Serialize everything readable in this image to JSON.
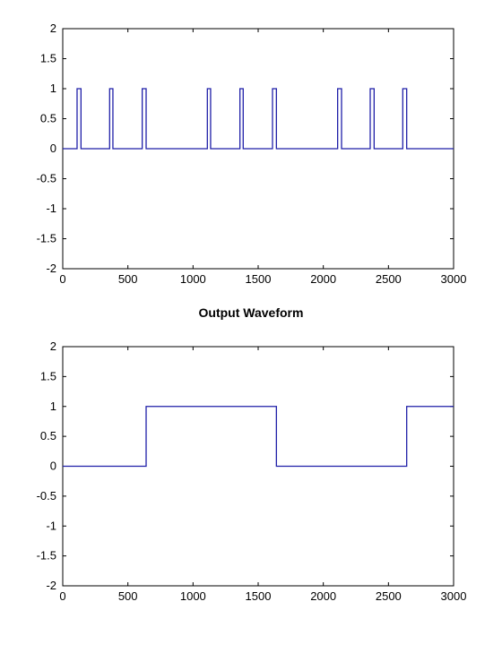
{
  "chart_data": [
    {
      "type": "line",
      "title": "",
      "xlabel": "",
      "ylabel": "",
      "xlim": [
        0,
        3000
      ],
      "ylim": [
        -2,
        2
      ],
      "xticks": [
        "0",
        "500",
        "1000",
        "1500",
        "2000",
        "2500",
        "3000"
      ],
      "yticks": [
        "2",
        "1.5",
        "1",
        "0.5",
        "0",
        "-0.5",
        "-1",
        "-1.5",
        "-2"
      ],
      "grid": false,
      "color": "#1f1fa8",
      "x": [
        0,
        110,
        110,
        140,
        140,
        360,
        360,
        385,
        385,
        610,
        610,
        640,
        640,
        1110,
        1110,
        1135,
        1135,
        1360,
        1360,
        1385,
        1385,
        1610,
        1610,
        1640,
        1640,
        2110,
        2110,
        2140,
        2140,
        2360,
        2360,
        2390,
        2390,
        2610,
        2610,
        2640,
        2640,
        3000
      ],
      "y": [
        0,
        0,
        1,
        1,
        0,
        0,
        1,
        1,
        0,
        0,
        1,
        1,
        0,
        0,
        1,
        1,
        0,
        0,
        1,
        1,
        0,
        0,
        1,
        1,
        0,
        0,
        1,
        1,
        0,
        0,
        1,
        1,
        0,
        0,
        1,
        1,
        0,
        0
      ]
    },
    {
      "type": "line",
      "title": "Output Waveform",
      "xlabel": "",
      "ylabel": "",
      "xlim": [
        0,
        3000
      ],
      "ylim": [
        -2,
        2
      ],
      "xticks": [
        "0",
        "500",
        "1000",
        "1500",
        "2000",
        "2500",
        "3000"
      ],
      "yticks": [
        "2",
        "1.5",
        "1",
        "0.5",
        "0",
        "-0.5",
        "-1",
        "-1.5",
        "-2"
      ],
      "grid": false,
      "color": "#1f1fa8",
      "x": [
        0,
        640,
        640,
        1640,
        1640,
        2640,
        2640,
        3000
      ],
      "y": [
        0,
        0,
        1,
        1,
        0,
        0,
        1,
        1
      ]
    }
  ]
}
